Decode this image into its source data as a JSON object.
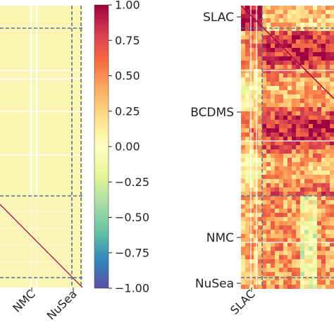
{
  "chart_data": [
    {
      "type": "heatmap",
      "panel": "left",
      "x_tick_labels": [
        "NMC",
        "NuSea"
      ],
      "experiment_blocks": [
        "NMC",
        "NuSea"
      ],
      "fill_value_approx": 0.05,
      "diagonal_value": 1.0,
      "grid": false
    },
    {
      "type": "heatmap",
      "panel": "right",
      "y_tick_labels": [
        "SLAC",
        "BCDMS",
        "NMC",
        "NuSea"
      ],
      "x_tick_labels": [
        "SLAC"
      ],
      "experiment_blocks": [
        "SLAC",
        "BCDMS",
        "NMC",
        "NuSea"
      ],
      "diagonal_value": 1.0,
      "block_mean_correlation_approx": [
        [
          0.9,
          0.3,
          0.35,
          0.3
        ],
        [
          0.3,
          0.6,
          0.45,
          0.45
        ],
        [
          0.35,
          0.45,
          0.55,
          0.35
        ],
        [
          0.3,
          0.45,
          0.35,
          0.7
        ]
      ],
      "grid": false
    }
  ],
  "colorbar": {
    "colormap": "Spectral_r",
    "min": -1.0,
    "max": 1.0,
    "ticks": [
      "1.00",
      "0.75",
      "0.50",
      "0.25",
      "0.00",
      "−0.25",
      "−0.50",
      "−0.75",
      "−1.00"
    ],
    "tick_values": [
      1.0,
      0.75,
      0.5,
      0.25,
      0.0,
      -0.25,
      -0.5,
      -0.75,
      -1.0
    ],
    "orientation": "vertical"
  },
  "colors": {
    "block_line": "#5a6f96",
    "diagonal": "#9e0142",
    "background_fill": "#fcf6b4"
  }
}
